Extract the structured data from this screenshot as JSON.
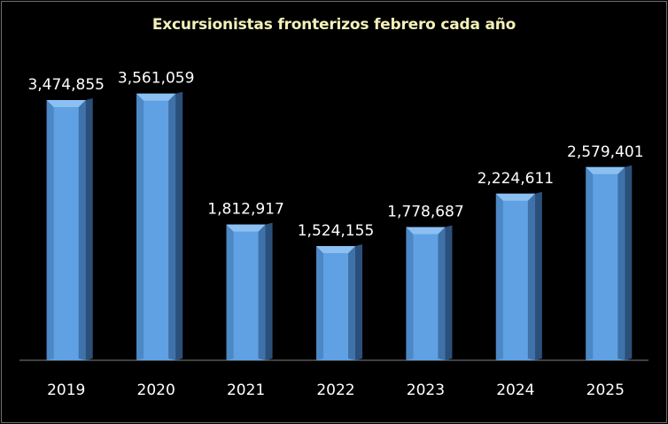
{
  "chart_data": {
    "type": "bar",
    "title": "Excursionistas fronterizos febrero cada año",
    "categories": [
      "2019",
      "2020",
      "2021",
      "2022",
      "2023",
      "2024",
      "2025"
    ],
    "values": [
      3474855,
      3561059,
      1812917,
      1524155,
      1778687,
      2224611,
      2579401
    ],
    "value_labels": [
      "3,474,855",
      "3,561,059",
      "1,812,917",
      "1,524,155",
      "1,778,687",
      "2,224,611",
      "2,579,401"
    ],
    "ylim": [
      0,
      3600000
    ],
    "grid": false,
    "legend": "none",
    "bar_color": "#5fa1e3",
    "background": "#000000"
  }
}
